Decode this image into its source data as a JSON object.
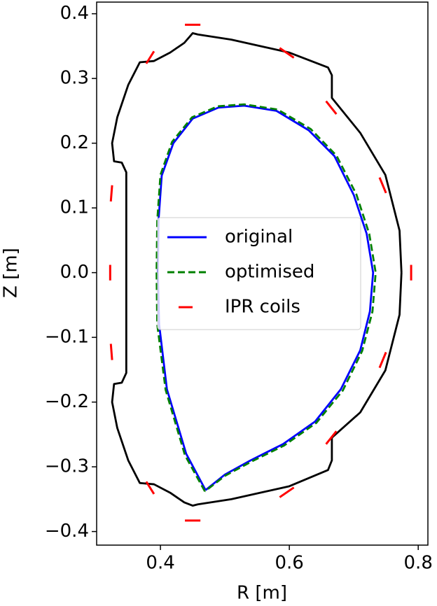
{
  "chart_data": {
    "type": "line",
    "xlabel": "R [m]",
    "ylabel": "Z [m]",
    "xlim": [
      0.301,
      0.815
    ],
    "ylim": [
      -0.421,
      0.418
    ],
    "xticks": [
      0.4,
      0.6,
      0.8
    ],
    "yticks": [
      {
        "value": -0.4,
        "label": "−0.4"
      },
      {
        "value": -0.3,
        "label": "−0.3"
      },
      {
        "value": -0.2,
        "label": "−0.2"
      },
      {
        "value": -0.1,
        "label": "−0.1"
      },
      {
        "value": 0,
        "label": "0.0"
      },
      0.1,
      0.2,
      0.3,
      0.4
    ],
    "legend": "center left",
    "series": [
      {
        "color": "#000000",
        "linestyle": "solid",
        "x": [
          0.774,
          0.771,
          0.749,
          0.71,
          0.666,
          0.666,
          0.66,
          0.6,
          0.51,
          0.458,
          0.45,
          0.437,
          0.415,
          0.39,
          0.368,
          0.35,
          0.333,
          0.325,
          0.328,
          0.34,
          0.347,
          0.347,
          0.34,
          0.328,
          0.325,
          0.333,
          0.35,
          0.368,
          0.39,
          0.415,
          0.437,
          0.45,
          0.458,
          0.51,
          0.6,
          0.66,
          0.666,
          0.666,
          0.71,
          0.749,
          0.771,
          0.774
        ],
        "values": [
          0.0,
          0.065,
          0.151,
          0.216,
          0.27,
          0.305,
          0.317,
          0.34,
          0.36,
          0.368,
          0.37,
          0.355,
          0.34,
          0.327,
          0.325,
          0.29,
          0.24,
          0.2,
          0.172,
          0.17,
          0.155,
          -0.155,
          -0.17,
          -0.172,
          -0.2,
          -0.24,
          -0.29,
          -0.325,
          -0.327,
          -0.34,
          -0.355,
          -0.36,
          -0.358,
          -0.35,
          -0.33,
          -0.305,
          -0.29,
          -0.255,
          -0.216,
          -0.151,
          -0.065,
          0.0
        ]
      },
      {
        "name": "original",
        "color": "#0000ff",
        "linestyle": "solid",
        "x": [
          0.47,
          0.44,
          0.41,
          0.398,
          0.396,
          0.397,
          0.402,
          0.42,
          0.45,
          0.49,
          0.53,
          0.58,
          0.63,
          0.67,
          0.7,
          0.72,
          0.73,
          0.725,
          0.71,
          0.68,
          0.64,
          0.59,
          0.54,
          0.5,
          0.47
        ],
        "values": [
          -0.336,
          -0.28,
          -0.18,
          -0.08,
          0.0,
          0.08,
          0.15,
          0.2,
          0.238,
          0.255,
          0.258,
          0.25,
          0.22,
          0.18,
          0.12,
          0.06,
          0.0,
          -0.06,
          -0.12,
          -0.18,
          -0.23,
          -0.265,
          -0.29,
          -0.312,
          -0.336
        ]
      },
      {
        "name": "optimised",
        "color": "#008000",
        "linestyle": "dashed",
        "x": [
          0.469,
          0.438,
          0.408,
          0.395,
          0.394,
          0.395,
          0.4,
          0.418,
          0.449,
          0.489,
          0.53,
          0.582,
          0.633,
          0.673,
          0.704,
          0.724,
          0.734,
          0.729,
          0.713,
          0.683,
          0.642,
          0.592,
          0.541,
          0.5,
          0.469
        ],
        "values": [
          -0.338,
          -0.282,
          -0.181,
          -0.08,
          0.0,
          0.08,
          0.151,
          0.202,
          0.24,
          0.257,
          0.26,
          0.252,
          0.222,
          0.181,
          0.121,
          0.06,
          0.0,
          -0.06,
          -0.121,
          -0.182,
          -0.232,
          -0.267,
          -0.292,
          -0.314,
          -0.338
        ]
      },
      {
        "name": "IPR coils",
        "color": "#ff0000",
        "linestyle": "solid",
        "x": [
          0.438,
          0.462,
          null,
          0.378,
          0.39,
          null,
          0.585,
          0.607,
          null,
          0.657,
          0.673,
          null,
          0.74,
          0.75,
          null,
          0.789,
          0.789,
          null,
          0.75,
          0.74,
          null,
          0.673,
          0.657,
          null,
          0.607,
          0.585,
          null,
          0.462,
          0.438,
          null,
          0.39,
          0.378,
          null,
          0.323,
          0.325,
          null,
          0.322,
          0.322,
          null,
          0.325,
          0.323
        ],
        "values": [
          0.383,
          0.383,
          null,
          0.323,
          0.342,
          null,
          0.347,
          0.332,
          null,
          0.265,
          0.245,
          null,
          0.147,
          0.123,
          null,
          0.012,
          -0.012,
          null,
          -0.123,
          -0.147,
          null,
          -0.245,
          -0.265,
          null,
          -0.332,
          -0.347,
          null,
          -0.383,
          -0.383,
          null,
          -0.342,
          -0.323,
          null,
          -0.11,
          -0.135,
          null,
          0.012,
          -0.012,
          null,
          0.135,
          0.11
        ]
      }
    ]
  }
}
